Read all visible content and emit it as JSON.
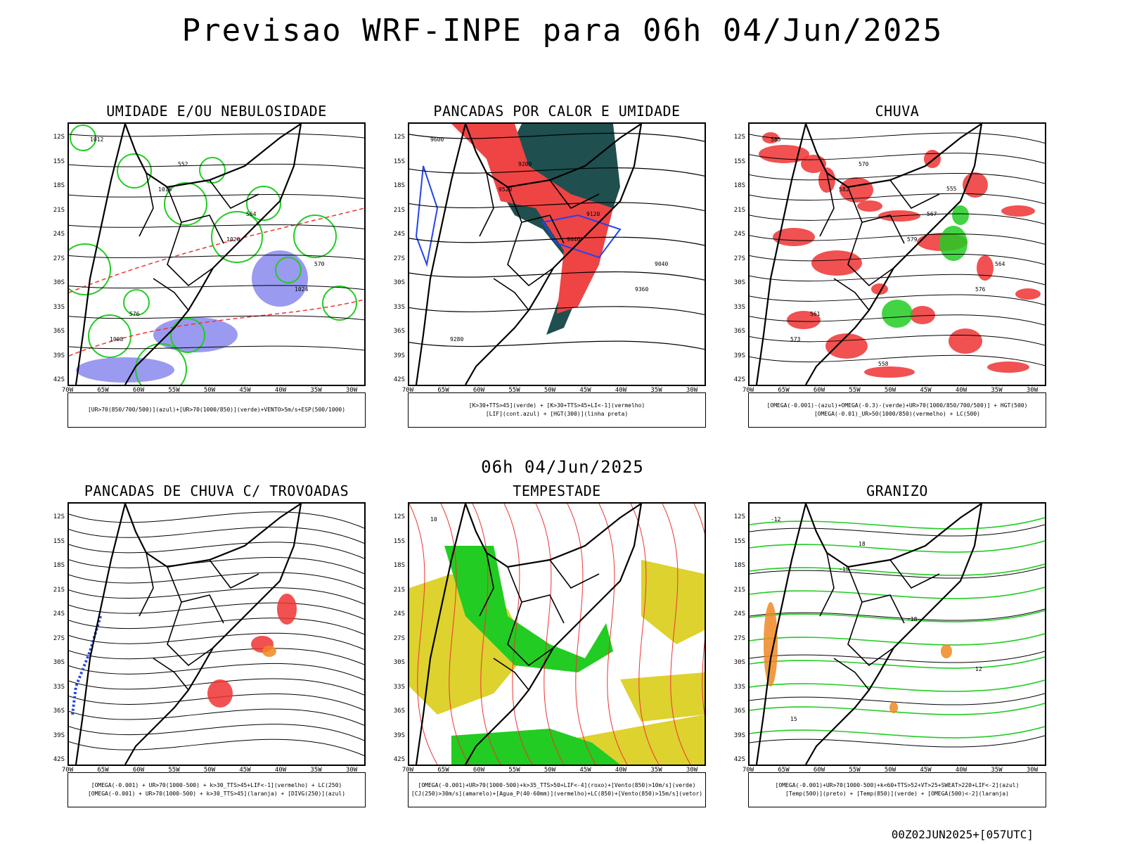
{
  "main_title": "Previsao WRF-INPE  para 06h 04/Jun/2025",
  "mid_title": "06h 04/Jun/2025",
  "footer": "00Z02JUN2025+[057UTC]",
  "axes": {
    "lat_labels": [
      "12S",
      "15S",
      "18S",
      "21S",
      "24S",
      "27S",
      "30S",
      "33S",
      "36S",
      "39S",
      "42S"
    ],
    "lon_labels": [
      "70W",
      "65W",
      "60W",
      "55W",
      "50W",
      "45W",
      "40W",
      "35W",
      "30W"
    ]
  },
  "panels": [
    {
      "title": "UMIDADE E/OU NEBULOSIDADE",
      "legend": [
        "[UR>70(850/700/500)](azul)+[UR>70(1000/850)](verde)+VENTO>5m/s+ESP(500/1000)"
      ],
      "contour_labels": [
        "1012",
        "1016",
        "1020",
        "1024",
        "1008",
        "552",
        "564",
        "570",
        "576"
      ],
      "colors": {
        "green": "#22cc22",
        "blue": "#8888ee",
        "red": "#ee3333",
        "black": "#000000"
      }
    },
    {
      "title": "PANCADAS POR CALOR E UMIDADE",
      "legend": [
        "[K>30+TTS>45](verde) + [K>30+TTS>45+LI<-1](vermelho)",
        "[LIF](cont.azul) + [HGT(300)](linha preta)"
      ],
      "contour_labels": [
        "9600",
        "9520",
        "9440",
        "9360",
        "9280",
        "9200",
        "9120",
        "9040"
      ],
      "colors": {
        "dark": "#1f4f4f",
        "red": "#ee4444",
        "blue": "#2244ee"
      }
    },
    {
      "title": "CHUVA",
      "legend": [
        "[OMEGA(-0.001)-(azul)+OMEGA(-0.3)-(verde)+UR>70(1000/850/700/500)] + HGT(500)",
        "[OMEGA(-0.01)_UR>50(1000/850)(vermelho) + LC(500)"
      ],
      "contour_labels": [
        "585",
        "582",
        "579",
        "576",
        "573",
        "570",
        "567",
        "564",
        "561",
        "558",
        "555"
      ],
      "colors": {
        "red": "#ee3333",
        "green": "#22cc22",
        "blue": "#2244ee"
      }
    },
    {
      "title": "PANCADAS DE CHUVA C/ TROVOADAS",
      "legend": [
        "[OMEGA(-0.001) + UR>70(1000-500) + k>30_TTS>45+LIF<-1](vermelho) + LC(250)",
        "[OMEGA(-0.001) + UR>70(1000-500) + k>30_TTS>45](laranja) + [DIVG(250)](azul)"
      ],
      "contour_labels": [],
      "colors": {
        "red": "#ee3333",
        "orange": "#ee8822",
        "blue": "#2244ee"
      }
    },
    {
      "title": "TEMPESTADE",
      "legend": [
        "[OMEGA(-0.001)+UR>70(1000-500)+k>35_TTS>50+LIF<-4](roxo)+[Vento(850)>10m/s](verde)",
        "[CJ(250)>30m/s](amarelo)+[Agua_P(40-60mm)](vermelho)+LC(850)+[Vento(850)>15m/s](vetor)"
      ],
      "contour_labels": [
        "10"
      ],
      "colors": {
        "yellow": "#ddd22e",
        "green": "#22cc22",
        "red": "#ee3333"
      }
    },
    {
      "title": "GRANIZO",
      "legend": [
        "[OMEGA(-0.001)+UR>70(1000-500)+k<60+TTS>52+VT>25+SWEAT>220+LIF<-2](azul)",
        "[Temp(500)](preto) + [Temp(850)](verde) + [OMEGA(500)<-2](laranja)"
      ],
      "contour_labels": [
        "-12",
        "-15",
        "-18",
        "12",
        "15",
        "18"
      ],
      "colors": {
        "green": "#22cc22",
        "orange": "#ee8822",
        "black": "#000000"
      }
    }
  ]
}
